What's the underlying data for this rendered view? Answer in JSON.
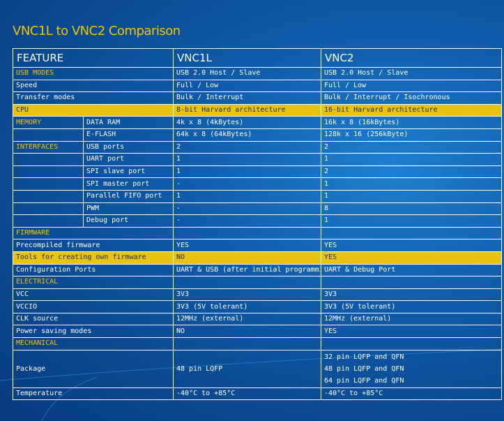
{
  "title": "VNC1L to VNC2 Comparison",
  "headers": {
    "feature": "FEATURE",
    "vnc1l": "VNC1L",
    "vnc2": "VNC2"
  },
  "sections": {
    "usb_modes": "USB MODES",
    "cpu": "CPU",
    "memory": "MEMORY",
    "interfaces": "INTERFACES",
    "firmware": "FIRMWARE",
    "electrical": "ELECTRICAL",
    "mechanical": "MECHANICAL"
  },
  "rows": {
    "usb_modes": {
      "vnc1l": "USB 2.0 Host / Slave",
      "vnc2": "USB 2.0 Host / Slave"
    },
    "speed": {
      "label": "Speed",
      "vnc1l": "Full / Low",
      "vnc2": "Full / Low"
    },
    "transfer": {
      "label": "Transfer modes",
      "vnc1l": "Bulk / Interrupt",
      "vnc2": "Bulk / Interrupt / Isochronous"
    },
    "cpu": {
      "vnc1l": "8-bit Harvard architecture",
      "vnc2": "16-bit Harvard architecture"
    },
    "data_ram": {
      "label": "DATA RAM",
      "vnc1l": "4k x 8 (4kBytes)",
      "vnc2": "16k x 8 (16kBytes)"
    },
    "eflash": {
      "label": "E-FLASH",
      "vnc1l": "64k x 8 (64kBytes)",
      "vnc2": "128k x 16 (256kByte)"
    },
    "usb_ports": {
      "label": "USB ports",
      "vnc1l": "2",
      "vnc2": "2"
    },
    "uart": {
      "label": "UART port",
      "vnc1l": "1",
      "vnc2": "1"
    },
    "spi_slave": {
      "label": "SPI slave port",
      "vnc1l": "1",
      "vnc2": "2"
    },
    "spi_master": {
      "label": "SPI master port",
      "vnc1l": "-",
      "vnc2": "1"
    },
    "fifo": {
      "label": "Parallel FIFO port",
      "vnc1l": "1",
      "vnc2": "1"
    },
    "pwm": {
      "label": "PWM",
      "vnc1l": "-",
      "vnc2": "8"
    },
    "debug": {
      "label": "Debug port",
      "vnc1l": "-",
      "vnc2": "1"
    },
    "precompiled": {
      "label": "Precompiled firmware",
      "vnc1l": "YES",
      "vnc2": "YES"
    },
    "tools": {
      "label": "Tools for creating own firmware",
      "vnc1l": "NO",
      "vnc2": "YES"
    },
    "config": {
      "label": "Configuration Ports",
      "vnc1l": "UART & USB (after initial programming)",
      "vnc2": "UART & Debug Port"
    },
    "vcc": {
      "label": "VCC",
      "vnc1l": "3V3",
      "vnc2": "3V3"
    },
    "vccio": {
      "label": "VCCIO",
      "vnc1l": "3V3 (5V tolerant)",
      "vnc2": "3V3 (5V tolerant)"
    },
    "clk": {
      "label": "CLK source",
      "vnc1l": "12MHz (external)",
      "vnc2": "12MHz (external)"
    },
    "power": {
      "label": "Power saving modes",
      "vnc1l": "NO",
      "vnc2": "YES"
    },
    "package": {
      "label": "Package",
      "vnc1l": "48 pin LQFP",
      "vnc2": [
        "32 pin LQFP and QFN",
        "48 pin LQFP and QFN",
        "64 pin LQFP and QFN"
      ]
    },
    "temperature": {
      "label": "Temperature",
      "vnc1l": "-40°C to +85°C",
      "vnc2": "-40°C to +85°C"
    }
  },
  "colors": {
    "background": "#0e5aa8",
    "accent": "#f3c400",
    "highlight_row": "#e8c312",
    "highlight_text": "#1b2c56"
  }
}
